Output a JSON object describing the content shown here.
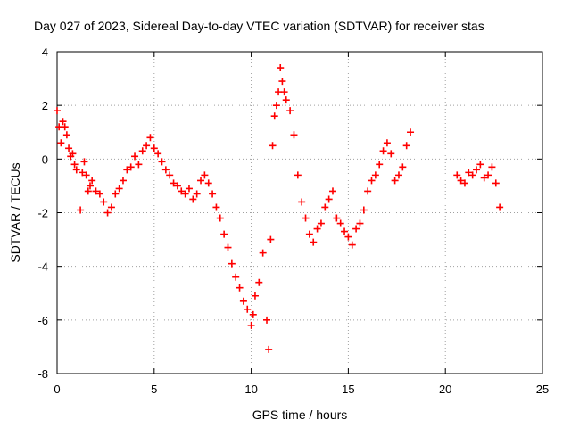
{
  "chart_data": {
    "type": "scatter",
    "title": "Day 027 of 2023, Sidereal Day-to-day VTEC variation (SDTVAR) for receiver stas",
    "xlabel": "GPS time / hours",
    "ylabel": "SDTVAR / TECUs",
    "xlim": [
      0,
      25
    ],
    "ylim": [
      -8,
      4
    ],
    "xticks": [
      0,
      5,
      10,
      15,
      20,
      25
    ],
    "yticks": [
      -8,
      -6,
      -4,
      -2,
      0,
      2,
      4
    ],
    "xtick_labels": [
      "0",
      "5",
      "10",
      "15",
      "20",
      "25"
    ],
    "ytick_labels": [
      "-8",
      "-6",
      "-4",
      "-2",
      "0",
      "2",
      "4"
    ],
    "grid": true,
    "marker": "+",
    "series_color": "#ff0000",
    "series": [
      {
        "name": "SDTVAR",
        "x": [
          0.0,
          0.1,
          0.2,
          0.3,
          0.4,
          0.5,
          0.6,
          0.7,
          0.8,
          0.9,
          1.0,
          1.2,
          1.3,
          1.4,
          1.5,
          1.6,
          1.7,
          1.8,
          2.0,
          2.2,
          2.4,
          2.6,
          2.8,
          3.0,
          3.2,
          3.4,
          3.6,
          3.8,
          4.0,
          4.2,
          4.4,
          4.6,
          4.8,
          5.0,
          5.2,
          5.4,
          5.6,
          5.8,
          6.0,
          6.2,
          6.4,
          6.6,
          6.8,
          7.0,
          7.2,
          7.4,
          7.6,
          7.8,
          8.0,
          8.2,
          8.4,
          8.6,
          8.8,
          9.0,
          9.2,
          9.4,
          9.6,
          9.8,
          10.0,
          10.1,
          10.2,
          10.4,
          10.6,
          10.8,
          10.9,
          11.0,
          11.1,
          11.2,
          11.3,
          11.4,
          11.5,
          11.6,
          11.7,
          11.8,
          12.0,
          12.2,
          12.4,
          12.6,
          12.8,
          13.0,
          13.2,
          13.4,
          13.6,
          13.8,
          14.0,
          14.2,
          14.4,
          14.6,
          14.8,
          15.0,
          15.2,
          15.4,
          15.6,
          15.8,
          16.0,
          16.2,
          16.4,
          16.6,
          16.8,
          17.0,
          17.2,
          17.4,
          17.6,
          17.8,
          18.0,
          18.2,
          20.6,
          20.8,
          21.0,
          21.2,
          21.4,
          21.6,
          21.8,
          22.0,
          22.2,
          22.4,
          22.6,
          22.8
        ],
        "y": [
          1.8,
          1.2,
          0.6,
          1.4,
          1.2,
          0.9,
          0.4,
          0.1,
          0.2,
          -0.2,
          -0.4,
          -1.9,
          -0.5,
          -0.1,
          -0.6,
          -1.2,
          -1.0,
          -0.8,
          -1.2,
          -1.3,
          -1.6,
          -2.0,
          -1.8,
          -1.3,
          -1.1,
          -0.8,
          -0.4,
          -0.3,
          0.1,
          -0.2,
          0.3,
          0.5,
          0.8,
          0.4,
          0.2,
          -0.1,
          -0.4,
          -0.6,
          -0.9,
          -1.0,
          -1.2,
          -1.3,
          -1.1,
          -1.5,
          -1.3,
          -0.8,
          -0.6,
          -0.9,
          -1.3,
          -1.8,
          -2.2,
          -2.8,
          -3.3,
          -3.9,
          -4.4,
          -4.8,
          -5.3,
          -5.6,
          -6.2,
          -5.8,
          -5.1,
          -4.6,
          -3.5,
          -6.0,
          -7.1,
          -3.0,
          0.5,
          1.6,
          2.0,
          2.5,
          3.4,
          2.9,
          2.5,
          2.2,
          1.8,
          0.9,
          -0.6,
          -1.6,
          -2.2,
          -2.8,
          -3.1,
          -2.6,
          -2.4,
          -1.8,
          -1.5,
          -1.2,
          -2.2,
          -2.4,
          -2.7,
          -2.9,
          -3.2,
          -2.6,
          -2.4,
          -1.9,
          -1.2,
          -0.8,
          -0.6,
          -0.2,
          0.3,
          0.6,
          0.2,
          -0.8,
          -0.6,
          -0.3,
          0.5,
          1.0,
          -0.6,
          -0.8,
          -0.9,
          -0.5,
          -0.6,
          -0.4,
          -0.2,
          -0.7,
          -0.6,
          -0.3,
          -0.9,
          -1.8
        ]
      }
    ]
  }
}
